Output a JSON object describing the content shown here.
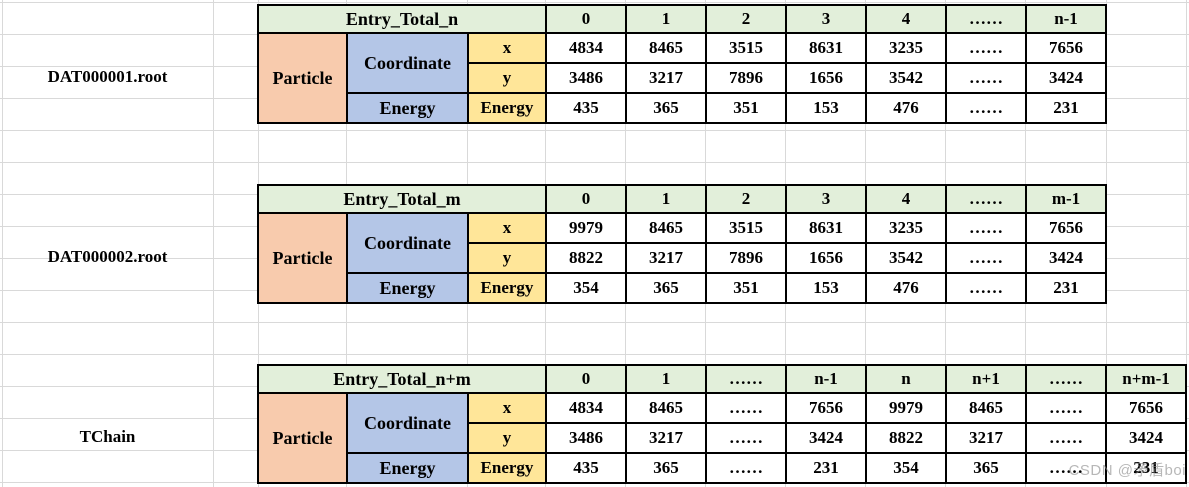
{
  "colors": {
    "header_green": "#e2efda",
    "particle_salmon": "#f8cbad",
    "group_blue": "#b4c6e7",
    "leaf_yellow": "#ffe699",
    "gridline_gray": "#d9d9d9",
    "border_black": "#000000"
  },
  "watermark": {
    "text": "CSDN @矛盾boi"
  },
  "tables": [
    {
      "file_label": "DAT000001.root",
      "entry_header": "Entry_Total_n",
      "particle_label": "Particle",
      "coordinate_label": "Coordinate",
      "energy_group_label": "Energy",
      "x_label": "x",
      "y_label": "y",
      "energy_row_label": "Energy",
      "columns": [
        "0",
        "1",
        "2",
        "3",
        "4",
        "……",
        "n-1"
      ],
      "x_values": [
        "4834",
        "8465",
        "3515",
        "8631",
        "3235",
        "……",
        "7656"
      ],
      "y_values": [
        "3486",
        "3217",
        "7896",
        "1656",
        "3542",
        "……",
        "3424"
      ],
      "energy_values": [
        "435",
        "365",
        "351",
        "153",
        "476",
        "……",
        "231"
      ]
    },
    {
      "file_label": "DAT000002.root",
      "entry_header": "Entry_Total_m",
      "particle_label": "Particle",
      "coordinate_label": "Coordinate",
      "energy_group_label": "Energy",
      "x_label": "x",
      "y_label": "y",
      "energy_row_label": "Energy",
      "columns": [
        "0",
        "1",
        "2",
        "3",
        "4",
        "……",
        "m-1"
      ],
      "x_values": [
        "9979",
        "8465",
        "3515",
        "8631",
        "3235",
        "……",
        "7656"
      ],
      "y_values": [
        "8822",
        "3217",
        "7896",
        "1656",
        "3542",
        "……",
        "3424"
      ],
      "energy_values": [
        "354",
        "365",
        "351",
        "153",
        "476",
        "……",
        "231"
      ]
    },
    {
      "file_label": "TChain",
      "entry_header": "Entry_Total_n+m",
      "particle_label": "Particle",
      "coordinate_label": "Coordinate",
      "energy_group_label": "Energy",
      "x_label": "x",
      "y_label": "y",
      "energy_row_label": "Energy",
      "columns": [
        "0",
        "1",
        "……",
        "n-1",
        "n",
        "n+1",
        "……",
        "n+m-1"
      ],
      "x_values": [
        "4834",
        "8465",
        "……",
        "7656",
        "9979",
        "8465",
        "……",
        "7656"
      ],
      "y_values": [
        "3486",
        "3217",
        "……",
        "3424",
        "8822",
        "3217",
        "……",
        "3424"
      ],
      "energy_values": [
        "435",
        "365",
        "……",
        "231",
        "354",
        "365",
        "……",
        "231"
      ]
    }
  ]
}
